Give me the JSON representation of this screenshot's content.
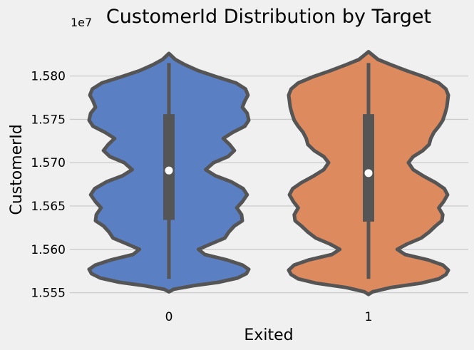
{
  "chart_data": {
    "type": "violin",
    "title": "CustomerId Distribution by Target",
    "xlabel": "Exited",
    "ylabel": "CustomerId",
    "offset_label": "1e7",
    "categories": [
      "0",
      "1"
    ],
    "y_ticks": [
      1.555,
      1.56,
      1.565,
      1.57,
      1.575,
      1.58
    ],
    "y_tick_labels": [
      "1.555",
      "1.560",
      "1.565",
      "1.570",
      "1.575",
      "1.580"
    ],
    "ylim": [
      1.5539,
      1.584
    ],
    "grid": "horizontal",
    "legend": "none",
    "series": [
      {
        "category": "0",
        "color": "#5a7fc3",
        "min": 1.5566,
        "q1": 1.5634,
        "median": 1.5691,
        "q3": 1.5756,
        "max": 1.5815,
        "density": [
          [
            1.5551,
            0.0
          ],
          [
            1.5554,
            0.06
          ],
          [
            1.5558,
            0.3
          ],
          [
            1.5562,
            0.62
          ],
          [
            1.5567,
            0.86
          ],
          [
            1.5572,
            0.97
          ],
          [
            1.5577,
            1.0
          ],
          [
            1.5582,
            0.92
          ],
          [
            1.5588,
            0.72
          ],
          [
            1.5594,
            0.45
          ],
          [
            1.56,
            0.37
          ],
          [
            1.5606,
            0.52
          ],
          [
            1.5613,
            0.7
          ],
          [
            1.562,
            0.75
          ],
          [
            1.5627,
            0.82
          ],
          [
            1.5633,
            0.92
          ],
          [
            1.564,
            0.91
          ],
          [
            1.5648,
            0.85
          ],
          [
            1.5655,
            0.92
          ],
          [
            1.5663,
            0.98
          ],
          [
            1.567,
            0.93
          ],
          [
            1.5678,
            0.78
          ],
          [
            1.5685,
            0.58
          ],
          [
            1.5692,
            0.46
          ],
          [
            1.57,
            0.56
          ],
          [
            1.5707,
            0.74
          ],
          [
            1.5714,
            0.82
          ],
          [
            1.5721,
            0.76
          ],
          [
            1.5728,
            0.68
          ],
          [
            1.5735,
            0.8
          ],
          [
            1.5742,
            0.95
          ],
          [
            1.5749,
            1.0
          ],
          [
            1.5757,
            0.98
          ],
          [
            1.5764,
            0.92
          ],
          [
            1.5771,
            0.95
          ],
          [
            1.5778,
            0.99
          ],
          [
            1.5785,
            0.96
          ],
          [
            1.5792,
            0.84
          ],
          [
            1.5799,
            0.6
          ],
          [
            1.5806,
            0.37
          ],
          [
            1.5813,
            0.2
          ],
          [
            1.5819,
            0.08
          ],
          [
            1.5826,
            0.0
          ]
        ]
      },
      {
        "category": "1",
        "color": "#dd8a5e",
        "min": 1.5566,
        "q1": 1.5632,
        "median": 1.5688,
        "q3": 1.5756,
        "max": 1.5815,
        "density": [
          [
            1.5548,
            0.0
          ],
          [
            1.5551,
            0.05
          ],
          [
            1.5556,
            0.28
          ],
          [
            1.5561,
            0.66
          ],
          [
            1.5566,
            0.88
          ],
          [
            1.5571,
            0.97
          ],
          [
            1.5576,
            1.0
          ],
          [
            1.5582,
            0.93
          ],
          [
            1.5588,
            0.74
          ],
          [
            1.5594,
            0.46
          ],
          [
            1.56,
            0.36
          ],
          [
            1.5606,
            0.48
          ],
          [
            1.5613,
            0.66
          ],
          [
            1.562,
            0.76
          ],
          [
            1.5627,
            0.84
          ],
          [
            1.5633,
            0.92
          ],
          [
            1.564,
            0.93
          ],
          [
            1.5648,
            0.88
          ],
          [
            1.5655,
            0.94
          ],
          [
            1.5663,
            0.99
          ],
          [
            1.567,
            0.95
          ],
          [
            1.5677,
            0.84
          ],
          [
            1.5684,
            0.7
          ],
          [
            1.5692,
            0.56
          ],
          [
            1.57,
            0.5
          ],
          [
            1.5707,
            0.56
          ],
          [
            1.5714,
            0.68
          ],
          [
            1.5721,
            0.76
          ],
          [
            1.5728,
            0.78
          ],
          [
            1.5735,
            0.82
          ],
          [
            1.5742,
            0.88
          ],
          [
            1.5749,
            0.93
          ],
          [
            1.5757,
            0.96
          ],
          [
            1.5764,
            0.98
          ],
          [
            1.5771,
            0.99
          ],
          [
            1.5778,
            1.0
          ],
          [
            1.5785,
            0.97
          ],
          [
            1.5792,
            0.88
          ],
          [
            1.5799,
            0.7
          ],
          [
            1.5806,
            0.48
          ],
          [
            1.5813,
            0.28
          ],
          [
            1.5819,
            0.12
          ],
          [
            1.5828,
            0.0
          ]
        ]
      }
    ]
  },
  "colors": {
    "background": "#f0f0f0",
    "grid": "#cbcbcb",
    "outline": "#555555",
    "median_dot": "#ffffff"
  }
}
